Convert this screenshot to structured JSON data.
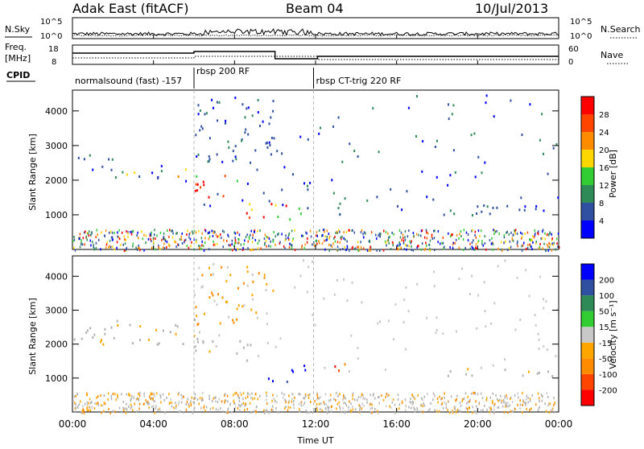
{
  "header": {
    "station": "Adak East (fitACF)",
    "beam": "Beam 04",
    "date": "10/Jul/2013"
  },
  "panels": {
    "nsky_label": "N.Sky",
    "nsearch_label": "N.Search",
    "freq_label_1": "Freq.",
    "freq_label_2": "[MHz]",
    "nave_label": "Nave",
    "cpid_label": "CPID",
    "nsky_ticks": [
      "10^5",
      "10^0"
    ],
    "nsearch_ticks": [
      "10^5",
      "10^0"
    ],
    "freq_ticks": [
      "18",
      "8"
    ],
    "nave_ticks": [
      "60",
      "0"
    ]
  },
  "cpid_segments": [
    {
      "label": "normalsound (fast) -157",
      "start_h": 0.0,
      "end_h": 6.0
    },
    {
      "label": "rbsp 200 RF",
      "start_h": 6.0,
      "end_h": 11.9
    },
    {
      "label": "rbsp CT-trig 220 RF",
      "start_h": 11.9,
      "end_h": 24.0
    }
  ],
  "colors": {
    "power": [
      "#0000ff",
      "#2f4fa0",
      "#2e8b57",
      "#32cd32",
      "#ffd700",
      "#ff8c00",
      "#ff4500",
      "#ff0000"
    ],
    "velocity": [
      "#0000ff",
      "#2f4fa0",
      "#2e8b57",
      "#32cd32",
      "#c8c8c8",
      "#ffa500",
      "#ff8c00",
      "#ff4500",
      "#ff0000"
    ],
    "ground": "#b0b0b0"
  },
  "chart_data": [
    {
      "type": "heatmap",
      "name": "power",
      "ylabel": "Slant Range [km]",
      "xlabel": "Time UT",
      "xlim": [
        0,
        24
      ],
      "ylim": [
        0,
        4600
      ],
      "x_ticks": [
        "00:00",
        "04:00",
        "08:00",
        "12:00",
        "16:00",
        "20:00",
        "00:00"
      ],
      "y_ticks": [
        1000,
        2000,
        3000,
        4000
      ],
      "colorbar_label": "Power [dB]",
      "colorbar_ticks": [
        "28",
        "24",
        "20",
        "16",
        "12",
        "8",
        "4"
      ],
      "features": [
        {
          "t0": 0.0,
          "t1": 2.0,
          "r0": 2200,
          "r1": 2800,
          "level": "low"
        },
        {
          "t0": 2.0,
          "t1": 6.0,
          "r0": 2000,
          "r1": 2500,
          "level": "mid"
        },
        {
          "t0": 6.0,
          "t1": 8.5,
          "r0": 1500,
          "r1": 2200,
          "level": "high"
        },
        {
          "t0": 8.5,
          "t1": 11.5,
          "r0": 900,
          "r1": 1500,
          "level": "high"
        },
        {
          "t0": 6.0,
          "t1": 10.0,
          "r0": 2500,
          "r1": 4400,
          "level": "low"
        },
        {
          "t0": 12.5,
          "t1": 13.5,
          "r0": 1000,
          "r1": 1800,
          "level": "mid"
        },
        {
          "t0": 16.0,
          "t1": 24.0,
          "r0": 1000,
          "r1": 1300,
          "level": "low"
        }
      ]
    },
    {
      "type": "heatmap",
      "name": "velocity",
      "ylabel": "Slant Range [km]",
      "xlabel": "Time UT",
      "xlim": [
        0,
        24
      ],
      "ylim": [
        0,
        4600
      ],
      "x_ticks": [
        "00:00",
        "04:00",
        "08:00",
        "12:00",
        "16:00",
        "20:00",
        "00:00"
      ],
      "y_ticks": [
        1000,
        2000,
        3000,
        4000
      ],
      "colorbar_label": "Velocity [m s⁻¹]",
      "colorbar_ticks": [
        "200",
        "100",
        "50",
        "15",
        "-15",
        "-50",
        "-100",
        "-200"
      ],
      "features": [
        {
          "t0": 0.0,
          "t1": 6.0,
          "r0": 2000,
          "r1": 2800,
          "level": "ground"
        },
        {
          "t0": 6.0,
          "t1": 9.0,
          "r0": 1500,
          "r1": 2200,
          "level": "ground"
        },
        {
          "t0": 9.5,
          "t1": 11.5,
          "r0": 900,
          "r1": 1400,
          "level": "pos_high"
        },
        {
          "t0": 6.0,
          "t1": 10.0,
          "r0": 2600,
          "r1": 4400,
          "level": "neg_mid"
        },
        {
          "t0": 12.8,
          "t1": 13.5,
          "r0": 1200,
          "r1": 1800,
          "level": "neg_high"
        },
        {
          "t0": 18.0,
          "t1": 24.0,
          "r0": 1000,
          "r1": 1300,
          "level": "ground"
        }
      ]
    }
  ]
}
